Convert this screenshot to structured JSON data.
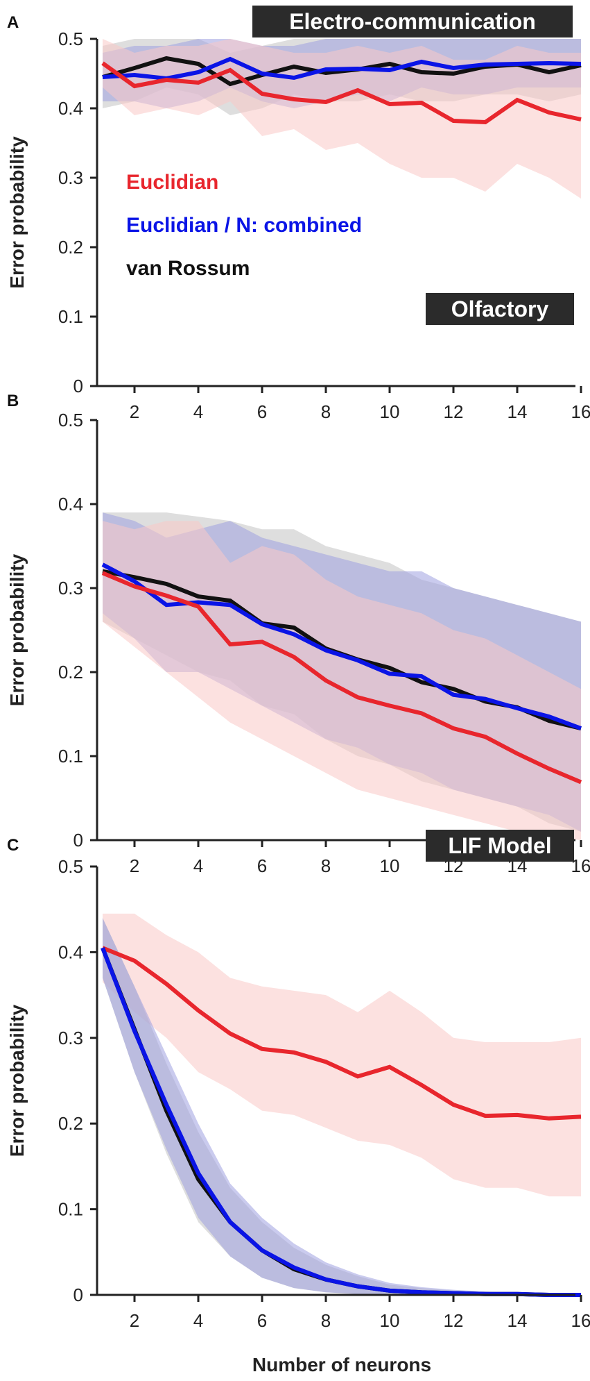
{
  "colors": {
    "euclidian": "#e8262d",
    "euclidian_n_combined": "#0a14e6",
    "van_rossum": "#111111",
    "euclidian_band": "#f9c9c6",
    "combined_band": "#9fa0e0",
    "van_rossum_band": "#c2c2c2",
    "title_box": "#2b2b2b"
  },
  "chart_data": [
    {
      "type": "line",
      "panel_label": "A",
      "title": "Electro-communication",
      "xlabel": "",
      "ylabel": "Error probability",
      "xlim": [
        1,
        16
      ],
      "ylim": [
        0,
        0.5
      ],
      "x_ticks": [
        2,
        4,
        6,
        8,
        10,
        12,
        14,
        16
      ],
      "y_ticks": [
        0,
        0.1,
        0.2,
        0.3,
        0.4,
        0.5
      ],
      "x_tick_labels": [
        "2",
        "4",
        "6",
        "8",
        "10",
        "12",
        "14",
        "16"
      ],
      "y_tick_labels": [
        "0",
        "0.1",
        "0.2",
        "0.3",
        "0.4",
        "0.5"
      ],
      "legend": {
        "placement": "center-left",
        "entries": [
          "Euclidian",
          "Euclidian / N: combined",
          "van Rossum"
        ]
      },
      "x": [
        1,
        2,
        3,
        4,
        5,
        6,
        7,
        8,
        9,
        10,
        11,
        12,
        13,
        14,
        15,
        16
      ],
      "series": [
        {
          "name": "van Rossum",
          "color_key": "van_rossum",
          "band_key": "van_rossum_band",
          "values": [
            0.445,
            0.458,
            0.472,
            0.464,
            0.435,
            0.448,
            0.46,
            0.451,
            0.456,
            0.464,
            0.452,
            0.45,
            0.46,
            0.463,
            0.452,
            0.462
          ],
          "upper": [
            0.49,
            0.5,
            0.5,
            0.5,
            0.48,
            0.49,
            0.5,
            0.5,
            0.5,
            0.5,
            0.5,
            0.5,
            0.5,
            0.5,
            0.5,
            0.5
          ],
          "lower": [
            0.4,
            0.41,
            0.43,
            0.42,
            0.39,
            0.4,
            0.42,
            0.41,
            0.41,
            0.42,
            0.41,
            0.41,
            0.42,
            0.42,
            0.41,
            0.42
          ]
        },
        {
          "name": "Euclidian / N: combined",
          "color_key": "euclidian_n_combined",
          "band_key": "combined_band",
          "values": [
            0.445,
            0.448,
            0.443,
            0.452,
            0.471,
            0.45,
            0.444,
            0.456,
            0.457,
            0.455,
            0.467,
            0.458,
            0.463,
            0.464,
            0.465,
            0.464
          ],
          "upper": [
            0.48,
            0.49,
            0.49,
            0.5,
            0.5,
            0.49,
            0.49,
            0.5,
            0.5,
            0.5,
            0.5,
            0.5,
            0.5,
            0.5,
            0.5,
            0.5
          ],
          "lower": [
            0.41,
            0.41,
            0.4,
            0.41,
            0.43,
            0.41,
            0.4,
            0.41,
            0.42,
            0.41,
            0.43,
            0.42,
            0.42,
            0.43,
            0.43,
            0.43
          ]
        },
        {
          "name": "Euclidian",
          "color_key": "euclidian",
          "band_key": "euclidian_band",
          "values": [
            0.465,
            0.432,
            0.441,
            0.437,
            0.455,
            0.421,
            0.413,
            0.409,
            0.426,
            0.406,
            0.408,
            0.382,
            0.38,
            0.412,
            0.394,
            0.384
          ],
          "upper": [
            0.5,
            0.48,
            0.49,
            0.49,
            0.5,
            0.49,
            0.48,
            0.48,
            0.49,
            0.48,
            0.49,
            0.47,
            0.47,
            0.49,
            0.48,
            0.48
          ],
          "lower": [
            0.43,
            0.39,
            0.4,
            0.39,
            0.41,
            0.36,
            0.37,
            0.34,
            0.35,
            0.32,
            0.3,
            0.3,
            0.28,
            0.32,
            0.3,
            0.27
          ]
        }
      ]
    },
    {
      "type": "line",
      "panel_label": "B",
      "title": "Olfactory",
      "xlabel": "",
      "ylabel": "Error probability",
      "xlim": [
        1,
        16
      ],
      "ylim": [
        0,
        0.5
      ],
      "x_ticks": [
        2,
        4,
        6,
        8,
        10,
        12,
        14,
        16
      ],
      "y_ticks": [
        0,
        0.1,
        0.2,
        0.3,
        0.4,
        0.5
      ],
      "x_tick_labels": [
        "2",
        "4",
        "6",
        "8",
        "10",
        "12",
        "14",
        "16"
      ],
      "y_tick_labels": [
        "0",
        "0.1",
        "0.2",
        "0.3",
        "0.4",
        "0.5"
      ],
      "x": [
        1,
        2,
        3,
        4,
        5,
        6,
        7,
        8,
        9,
        10,
        11,
        12,
        13,
        14,
        15,
        16
      ],
      "series": [
        {
          "name": "van Rossum",
          "color_key": "van_rossum",
          "band_key": "van_rossum_band",
          "values": [
            0.32,
            0.313,
            0.305,
            0.29,
            0.285,
            0.258,
            0.253,
            0.228,
            0.215,
            0.205,
            0.188,
            0.18,
            0.165,
            0.158,
            0.142,
            0.133
          ],
          "upper": [
            0.39,
            0.39,
            0.39,
            0.385,
            0.38,
            0.37,
            0.37,
            0.35,
            0.34,
            0.33,
            0.31,
            0.3,
            0.29,
            0.28,
            0.27,
            0.26
          ],
          "lower": [
            0.26,
            0.24,
            0.22,
            0.2,
            0.19,
            0.16,
            0.15,
            0.12,
            0.1,
            0.09,
            0.07,
            0.06,
            0.05,
            0.04,
            0.02,
            0.01
          ]
        },
        {
          "name": "Euclidian / N: combined",
          "color_key": "euclidian_n_combined",
          "band_key": "combined_band",
          "values": [
            0.328,
            0.308,
            0.28,
            0.283,
            0.28,
            0.257,
            0.245,
            0.226,
            0.214,
            0.198,
            0.195,
            0.173,
            0.168,
            0.157,
            0.147,
            0.133
          ],
          "upper": [
            0.39,
            0.38,
            0.36,
            0.37,
            0.38,
            0.36,
            0.35,
            0.34,
            0.33,
            0.32,
            0.32,
            0.3,
            0.29,
            0.28,
            0.27,
            0.26
          ],
          "lower": [
            0.27,
            0.24,
            0.2,
            0.2,
            0.18,
            0.16,
            0.14,
            0.12,
            0.11,
            0.09,
            0.08,
            0.06,
            0.05,
            0.04,
            0.03,
            0.01
          ]
        },
        {
          "name": "Euclidian",
          "color_key": "euclidian",
          "band_key": "euclidian_band",
          "values": [
            0.318,
            0.302,
            0.291,
            0.278,
            0.233,
            0.236,
            0.218,
            0.19,
            0.17,
            0.16,
            0.151,
            0.133,
            0.123,
            0.103,
            0.085,
            0.069
          ],
          "upper": [
            0.38,
            0.37,
            0.38,
            0.38,
            0.33,
            0.35,
            0.34,
            0.31,
            0.29,
            0.28,
            0.27,
            0.25,
            0.24,
            0.22,
            0.2,
            0.18
          ],
          "lower": [
            0.26,
            0.23,
            0.2,
            0.17,
            0.14,
            0.12,
            0.1,
            0.08,
            0.06,
            0.05,
            0.04,
            0.03,
            0.02,
            0.01,
            0.005,
            0.0
          ]
        }
      ]
    },
    {
      "type": "line",
      "panel_label": "C",
      "title": "LIF Model",
      "xlabel": "Number of neurons",
      "ylabel": "Error probability",
      "xlim": [
        1,
        16
      ],
      "ylim": [
        0,
        0.5
      ],
      "x_ticks": [
        2,
        4,
        6,
        8,
        10,
        12,
        14,
        16
      ],
      "y_ticks": [
        0,
        0.1,
        0.2,
        0.3,
        0.4,
        0.5
      ],
      "x_tick_labels": [
        "2",
        "4",
        "6",
        "8",
        "10",
        "12",
        "14",
        "16"
      ],
      "y_tick_labels": [
        "0",
        "0.1",
        "0.2",
        "0.3",
        "0.4",
        "0.5"
      ],
      "x": [
        1,
        2,
        3,
        4,
        5,
        6,
        7,
        8,
        9,
        10,
        11,
        12,
        13,
        14,
        15,
        16
      ],
      "series": [
        {
          "name": "Euclidian",
          "color_key": "euclidian",
          "band_key": "euclidian_band",
          "values": [
            0.405,
            0.39,
            0.363,
            0.332,
            0.305,
            0.287,
            0.283,
            0.272,
            0.255,
            0.266,
            0.245,
            0.222,
            0.209,
            0.21,
            0.206,
            0.208
          ],
          "upper": [
            0.445,
            0.445,
            0.42,
            0.4,
            0.37,
            0.36,
            0.355,
            0.35,
            0.33,
            0.355,
            0.33,
            0.3,
            0.295,
            0.295,
            0.295,
            0.3
          ],
          "lower": [
            0.365,
            0.33,
            0.3,
            0.26,
            0.24,
            0.215,
            0.21,
            0.195,
            0.18,
            0.175,
            0.16,
            0.135,
            0.125,
            0.125,
            0.115,
            0.115
          ]
        },
        {
          "name": "van Rossum",
          "color_key": "van_rossum",
          "band_key": "van_rossum_band",
          "values": [
            0.405,
            0.31,
            0.215,
            0.135,
            0.085,
            0.052,
            0.03,
            0.018,
            0.01,
            0.005,
            0.003,
            0.002,
            0.001,
            0.001,
            0.0,
            0.0
          ],
          "upper": [
            0.44,
            0.36,
            0.27,
            0.19,
            0.125,
            0.085,
            0.055,
            0.035,
            0.022,
            0.012,
            0.008,
            0.005,
            0.003,
            0.002,
            0.001,
            0.001
          ],
          "lower": [
            0.37,
            0.26,
            0.165,
            0.085,
            0.045,
            0.02,
            0.008,
            0.003,
            0.001,
            0.0,
            0.0,
            0.0,
            0.0,
            0.0,
            0.0,
            0.0
          ]
        },
        {
          "name": "Euclidian / N: combined",
          "color_key": "euclidian_n_combined",
          "band_key": "combined_band",
          "values": [
            0.405,
            0.308,
            0.222,
            0.142,
            0.085,
            0.052,
            0.032,
            0.018,
            0.01,
            0.005,
            0.003,
            0.002,
            0.001,
            0.001,
            0.0,
            0.0
          ],
          "upper": [
            0.44,
            0.36,
            0.28,
            0.2,
            0.13,
            0.09,
            0.06,
            0.038,
            0.024,
            0.014,
            0.009,
            0.006,
            0.004,
            0.002,
            0.001,
            0.001
          ],
          "lower": [
            0.37,
            0.26,
            0.17,
            0.09,
            0.045,
            0.02,
            0.008,
            0.003,
            0.001,
            0.0,
            0.0,
            0.0,
            0.0,
            0.0,
            0.0,
            0.0
          ]
        }
      ]
    }
  ]
}
